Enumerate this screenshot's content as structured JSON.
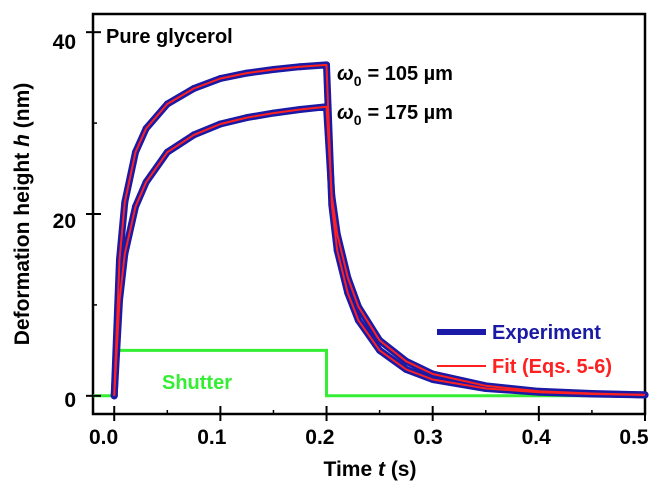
{
  "chart_data": {
    "type": "line",
    "title": "",
    "xlabel": "Time t (s)",
    "xlabel_parts": {
      "main": "Time ",
      "var": "t",
      "unit": " (s)"
    },
    "ylabel": "Deformation height h (nm)",
    "ylabel_parts": {
      "main": "Deformation height ",
      "var": "h",
      "unit": " (nm)"
    },
    "xlim": [
      -0.02,
      0.5
    ],
    "ylim": [
      -2,
      42
    ],
    "xticks": [
      0.0,
      0.1,
      0.2,
      0.3,
      0.4,
      0.5
    ],
    "xtick_labels": [
      "0.0",
      "0.1",
      "0.2",
      "0.3",
      "0.4",
      "0.5"
    ],
    "yticks": [
      0,
      20,
      40
    ],
    "ytick_labels": [
      "0",
      "20",
      "40"
    ],
    "grid": false,
    "legend_position": "bottom-right",
    "legend": [
      {
        "label": "Experiment",
        "color": "#1a1aa6"
      },
      {
        "label": "Fit (Eqs. 5-6)",
        "color": "#ff2020"
      }
    ],
    "annotations": {
      "sample": "Pure glycerol",
      "shutter": "Shutter",
      "omega_symbol": "ω",
      "omega_sub": "0",
      "curve1_label": "= 105 µm",
      "curve2_label": "= 175 µm"
    },
    "colors": {
      "experiment": "#1a1aa6",
      "fit": "#ff2020",
      "shutter": "#33ee33",
      "axis": "#000000"
    },
    "series": [
      {
        "name": "Experiment",
        "curve": "w0 = 105 µm",
        "x": [
          0,
          0.005,
          0.01,
          0.02,
          0.03,
          0.05,
          0.075,
          0.1,
          0.125,
          0.15,
          0.175,
          0.2,
          0.205,
          0.21,
          0.22,
          0.23,
          0.25,
          0.275,
          0.3,
          0.35,
          0.4,
          0.45,
          0.5
        ],
        "values": [
          0,
          15.0,
          21.3,
          26.8,
          29.4,
          32.1,
          33.8,
          34.9,
          35.5,
          35.9,
          36.2,
          36.4,
          21.0,
          16.0,
          11.3,
          8.3,
          5.0,
          2.9,
          1.8,
          0.8,
          0.4,
          0.2,
          0.1
        ]
      },
      {
        "name": "Experiment",
        "curve": "w0 = 175 µm",
        "x": [
          0,
          0.005,
          0.01,
          0.02,
          0.03,
          0.05,
          0.075,
          0.1,
          0.125,
          0.15,
          0.175,
          0.2,
          0.205,
          0.21,
          0.22,
          0.23,
          0.25,
          0.275,
          0.3,
          0.35,
          0.4,
          0.45,
          0.5
        ],
        "values": [
          0,
          10.5,
          15.6,
          20.8,
          23.5,
          26.8,
          28.7,
          29.9,
          30.6,
          31.1,
          31.5,
          31.8,
          22.0,
          17.8,
          13.0,
          9.8,
          6.1,
          3.8,
          2.4,
          1.1,
          0.5,
          0.25,
          0.1
        ]
      },
      {
        "name": "Fit (Eqs. 5-6)",
        "curve": "w0 = 105 µm",
        "x": [
          0,
          0.005,
          0.01,
          0.02,
          0.03,
          0.05,
          0.075,
          0.1,
          0.125,
          0.15,
          0.175,
          0.2,
          0.205,
          0.21,
          0.22,
          0.23,
          0.25,
          0.275,
          0.3,
          0.35,
          0.4,
          0.45,
          0.5
        ],
        "values": [
          0,
          15.0,
          21.3,
          26.8,
          29.4,
          32.1,
          33.8,
          34.9,
          35.5,
          35.9,
          36.2,
          36.4,
          21.0,
          16.0,
          11.3,
          8.3,
          5.0,
          2.9,
          1.8,
          0.8,
          0.4,
          0.2,
          0.1
        ]
      },
      {
        "name": "Fit (Eqs. 5-6)",
        "curve": "w0 = 175 µm",
        "x": [
          0,
          0.005,
          0.01,
          0.02,
          0.03,
          0.05,
          0.075,
          0.1,
          0.125,
          0.15,
          0.175,
          0.2,
          0.205,
          0.21,
          0.22,
          0.23,
          0.25,
          0.275,
          0.3,
          0.35,
          0.4,
          0.45,
          0.5
        ],
        "values": [
          0,
          10.5,
          15.6,
          20.8,
          23.5,
          26.8,
          28.7,
          29.9,
          30.6,
          31.1,
          31.5,
          31.8,
          22.0,
          17.8,
          13.0,
          9.8,
          6.1,
          3.8,
          2.4,
          1.1,
          0.5,
          0.25,
          0.1
        ]
      },
      {
        "name": "Shutter",
        "x": [
          -0.02,
          0.0,
          0.0,
          0.2,
          0.2,
          0.5
        ],
        "values": [
          0,
          0,
          5,
          5,
          0,
          0
        ]
      }
    ]
  }
}
